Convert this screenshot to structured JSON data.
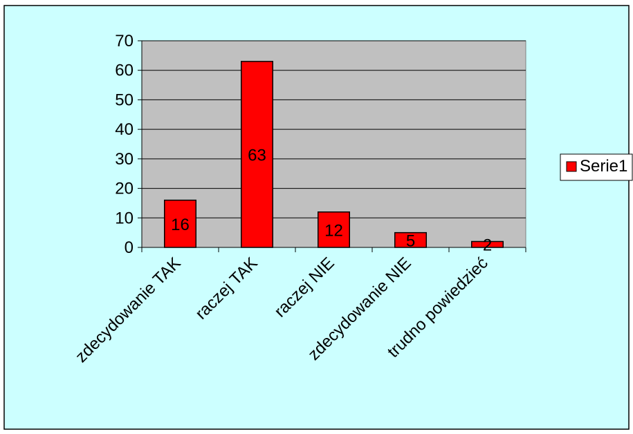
{
  "chart_data": {
    "type": "bar",
    "title": "",
    "xlabel": "",
    "ylabel": "",
    "categories": [
      "zdecydowanie TAK",
      "raczej TAK",
      "raczej NIE",
      "zdecydowanie NIE",
      "trudno powiedzieć"
    ],
    "series": [
      {
        "name": "Serie1",
        "values": [
          16,
          63,
          12,
          5,
          2
        ],
        "color": "#ff0000"
      }
    ],
    "ylim": [
      0,
      70
    ],
    "yticks": [
      0,
      10,
      20,
      30,
      40,
      50,
      60,
      70
    ],
    "grid": true,
    "legend_position": "right",
    "data_labels": true
  },
  "colors": {
    "chart_area": "#ccffff",
    "plot_area": "#c0c0c0",
    "bar": "#ff0000",
    "outline": "#000000"
  }
}
